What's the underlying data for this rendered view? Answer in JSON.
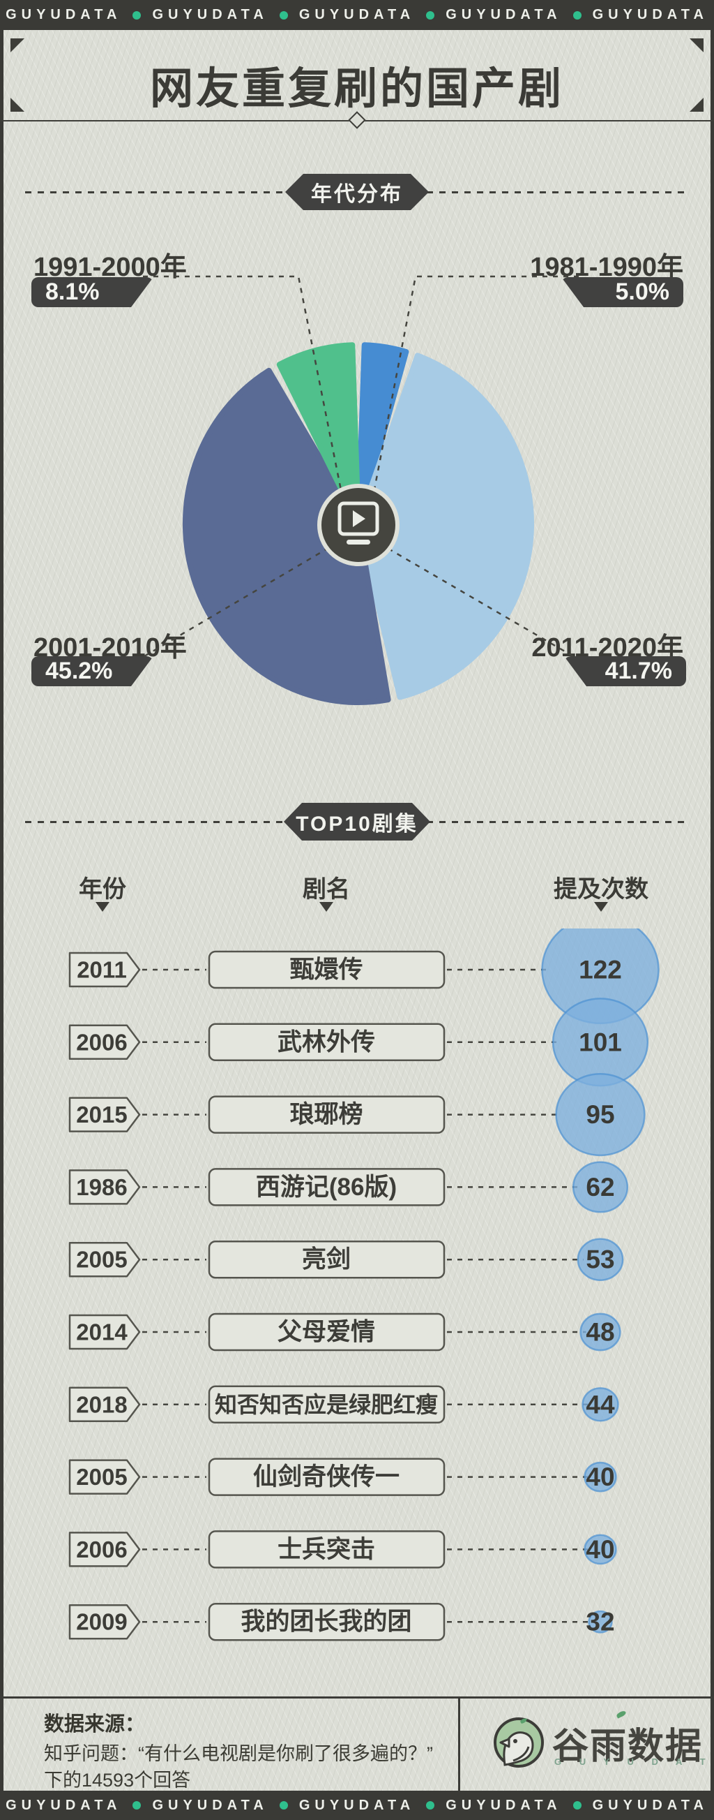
{
  "banner": {
    "brand": "GUYUDATA",
    "repeat": 5,
    "dot_color": "#2fbf8d"
  },
  "title": "网友重复刷的国产剧",
  "decade_section": {
    "badge": "年代分布",
    "labels": [
      {
        "range": "1991-2000年",
        "pct": "8.1%",
        "position": "top-left"
      },
      {
        "range": "1981-1990年",
        "pct": "5.0%",
        "position": "top-right"
      },
      {
        "range": "2001-2010年",
        "pct": "45.2%",
        "position": "bottom-left"
      },
      {
        "range": "2011-2020年",
        "pct": "41.7%",
        "position": "bottom-right"
      }
    ]
  },
  "top10_section": {
    "badge": "TOP10剧集",
    "columns": [
      "年份",
      "剧名",
      "提及次数"
    ],
    "sort_icon": "▼"
  },
  "chart_data": [
    {
      "type": "pie",
      "title": "年代分布",
      "unit": "%",
      "start_angle_deg": 0,
      "clockwise": true,
      "slices": [
        {
          "label": "1981-1990年",
          "value": 5.0,
          "color": "#468cd2"
        },
        {
          "label": "2011-2020年",
          "value": 41.7,
          "color": "#a7cbe5"
        },
        {
          "label": "2001-2010年",
          "value": 45.2,
          "color": "#5a6b95"
        },
        {
          "label": "1991-2000年",
          "value": 8.1,
          "color": "#50c08c"
        }
      ]
    },
    {
      "type": "table",
      "title": "TOP10剧集",
      "columns": [
        "年份",
        "剧名",
        "提及次数"
      ],
      "bubble_color": "#7db0de",
      "bubble_border_color": "#4d92d2",
      "rows": [
        {
          "year": "2011",
          "name": "甄嬛传",
          "count": 122
        },
        {
          "year": "2006",
          "name": "武林外传",
          "count": 101
        },
        {
          "year": "2015",
          "name": "琅琊榜",
          "count": 95
        },
        {
          "year": "1986",
          "name": "西游记(86版)",
          "count": 62
        },
        {
          "year": "2005",
          "name": "亮剑",
          "count": 53
        },
        {
          "year": "2014",
          "name": "父母爱情",
          "count": 48
        },
        {
          "year": "2018",
          "name": "知否知否应是绿肥红瘦",
          "count": 44
        },
        {
          "year": "2005",
          "name": "仙剑奇侠传一",
          "count": 40
        },
        {
          "year": "2006",
          "name": "士兵突击",
          "count": 40
        },
        {
          "year": "2009",
          "name": "我的团长我的团",
          "count": 32
        }
      ]
    }
  ],
  "footer": {
    "source_title": "数据来源：",
    "lines": [
      "知乎问题：“有什么电视剧是你刷了很多遍的？”",
      "下的14593个回答"
    ],
    "logo_text": "谷雨数据",
    "logo_sub": "G U Y U D A T A"
  }
}
